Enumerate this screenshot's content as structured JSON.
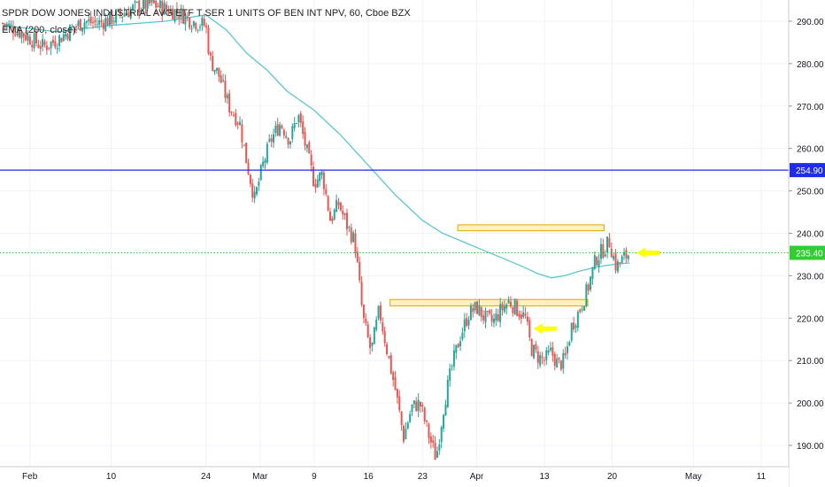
{
  "header": {
    "title": "SPDR DOW JONES INDUSTRIAL AVG ETF T SER 1 UNITS OF BEN INT NPV, 60, Cboe BZX",
    "indicator": "EMA (200, close)"
  },
  "colors": {
    "up": "#26a69a",
    "down": "#ef5350",
    "ema": "#5bc8d0",
    "resistance": "#1f2ee6",
    "current": "#33cc33",
    "zone_fill": "#fff2c0",
    "zone_border": "#e0a800",
    "arrow": "#ffff00"
  },
  "price_axis": {
    "min": 185,
    "max": 295,
    "ticks": [
      {
        "value": 290,
        "label": "290.00"
      },
      {
        "value": 280,
        "label": "280.00"
      },
      {
        "value": 270,
        "label": "270.00"
      },
      {
        "value": 260,
        "label": "260.00"
      },
      {
        "value": 250,
        "label": "250.00"
      },
      {
        "value": 240,
        "label": "240.00"
      },
      {
        "value": 230,
        "label": "230.00"
      },
      {
        "value": 220,
        "label": "220.00"
      },
      {
        "value": 210,
        "label": "210.00"
      },
      {
        "value": 200,
        "label": "200.00"
      },
      {
        "value": 190,
        "label": "190.00"
      }
    ]
  },
  "time_axis": {
    "labels": [
      "Feb",
      "10",
      "24",
      "Mar",
      "9",
      "16",
      "23",
      "Apr",
      "13",
      "20",
      "May",
      "11"
    ],
    "tick_index": [
      0,
      6,
      13,
      17,
      21,
      25,
      29,
      33,
      38,
      43,
      49,
      54
    ],
    "total_days": 58
  },
  "horizontal_lines": [
    {
      "name": "resistance-line",
      "price": 254.9,
      "label": "254.90",
      "style": "solid"
    },
    {
      "name": "current-price-line",
      "price": 235.4,
      "label": "235.40",
      "style": "dotted"
    }
  ],
  "zones": [
    {
      "name": "upper-zone",
      "from_day": 31.6,
      "to_day": 42.4,
      "low": 240.6,
      "high": 242.0
    },
    {
      "name": "lower-zone",
      "from_day": 26.6,
      "to_day": 41.2,
      "low": 222.9,
      "high": 224.4
    }
  ],
  "arrows": [
    {
      "name": "arrow-current",
      "day": 44.8,
      "price": 235.4
    },
    {
      "name": "arrow-lower",
      "day": 37.2,
      "price": 217.5
    }
  ],
  "chart_data": {
    "type": "candlestick",
    "series": [
      {
        "kind": "price",
        "points": [
          [
            -2.0,
            289.5
          ],
          [
            -1.0,
            288.0
          ],
          [
            0.0,
            286.0
          ],
          [
            1.0,
            284.0
          ],
          [
            2.0,
            285.5
          ],
          [
            3.0,
            288.0
          ],
          [
            4.0,
            290.0
          ],
          [
            5.0,
            289.5
          ],
          [
            6.0,
            290.5
          ],
          [
            7.0,
            292.0
          ],
          [
            8.0,
            293.5
          ],
          [
            9.0,
            294.0
          ],
          [
            10.0,
            293.0
          ],
          [
            11.0,
            292.0
          ],
          [
            12.0,
            290.0
          ],
          [
            13.0,
            289.0
          ],
          [
            13.3,
            281.0
          ],
          [
            14.0,
            277.0
          ],
          [
            14.7,
            270.0
          ],
          [
            15.5,
            266.0
          ],
          [
            16.0,
            257.0
          ],
          [
            16.6,
            248.0
          ],
          [
            17.2,
            256.0
          ],
          [
            17.8,
            262.0
          ],
          [
            18.5,
            266.0
          ],
          [
            19.2,
            262.0
          ],
          [
            19.8,
            268.0
          ],
          [
            20.4,
            260.0
          ],
          [
            21.0,
            252.0
          ],
          [
            21.6,
            254.0
          ],
          [
            22.2,
            243.0
          ],
          [
            22.8,
            247.0
          ],
          [
            23.4,
            242.0
          ],
          [
            24.0,
            238.0
          ],
          [
            24.6,
            220.0
          ],
          [
            25.2,
            212.0
          ],
          [
            25.8,
            222.0
          ],
          [
            26.4,
            212.0
          ],
          [
            27.0,
            203.0
          ],
          [
            27.6,
            192.0
          ],
          [
            28.2,
            199.0
          ],
          [
            28.8,
            200.0
          ],
          [
            29.4,
            193.0
          ],
          [
            30.0,
            187.0
          ],
          [
            30.6,
            200.0
          ],
          [
            31.2,
            209.0
          ],
          [
            31.8,
            216.0
          ],
          [
            32.4,
            221.0
          ],
          [
            33.0,
            222.5
          ],
          [
            33.6,
            220.0
          ],
          [
            34.2,
            219.0
          ],
          [
            34.8,
            222.0
          ],
          [
            35.4,
            224.0
          ],
          [
            36.0,
            222.0
          ],
          [
            36.6,
            220.0
          ],
          [
            37.0,
            213.0
          ],
          [
            37.5,
            211.0
          ],
          [
            38.0,
            210.0
          ],
          [
            38.5,
            212.0
          ],
          [
            39.0,
            209.0
          ],
          [
            39.5,
            210.0
          ],
          [
            40.0,
            218.0
          ],
          [
            40.6,
            222.0
          ],
          [
            41.2,
            227.0
          ],
          [
            41.8,
            234.0
          ],
          [
            42.3,
            236.0
          ],
          [
            42.8,
            238.0
          ],
          [
            43.3,
            232.0
          ],
          [
            43.8,
            234.0
          ],
          [
            44.3,
            235.4
          ]
        ]
      },
      {
        "kind": "ema",
        "points": [
          [
            -2.0,
            289.0
          ],
          [
            2.0,
            287.5
          ],
          [
            6.0,
            289.0
          ],
          [
            10.0,
            290.0
          ],
          [
            13.0,
            291.5
          ],
          [
            14.5,
            288.0
          ],
          [
            16.0,
            282.5
          ],
          [
            17.5,
            278.5
          ],
          [
            19.0,
            273.5
          ],
          [
            21.0,
            269.0
          ],
          [
            23.0,
            263.0
          ],
          [
            25.0,
            256.0
          ],
          [
            27.0,
            249.0
          ],
          [
            29.0,
            243.0
          ],
          [
            30.5,
            240.0
          ],
          [
            32.0,
            238.0
          ],
          [
            33.5,
            236.0
          ],
          [
            35.0,
            234.0
          ],
          [
            36.5,
            232.0
          ],
          [
            37.5,
            230.5
          ],
          [
            38.5,
            229.5
          ],
          [
            39.5,
            230.0
          ],
          [
            40.5,
            231.0
          ],
          [
            41.5,
            231.8
          ],
          [
            42.5,
            232.4
          ],
          [
            43.5,
            232.8
          ],
          [
            44.3,
            233.0
          ]
        ]
      }
    ]
  }
}
